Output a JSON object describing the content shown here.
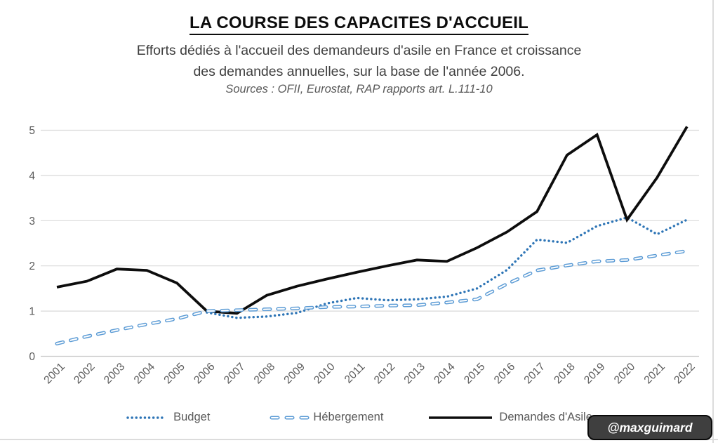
{
  "header": {
    "title": "LA COURSE DES CAPACITES D'ACCUEIL",
    "subtitle_line1": "Efforts dédiés à l'accueil des demandeurs d'asile en France et croissance",
    "subtitle_line2": "des demandes annuelles, sur la base de l'année 2006.",
    "sources": "Sources : OFII, Eurostat, RAP rapports art. L.111-10"
  },
  "chart_data": {
    "type": "line",
    "title": "LA COURSE DES CAPACITES D'ACCUEIL",
    "x": [
      "2001",
      "2002",
      "2003",
      "2004",
      "2005",
      "2006",
      "2007",
      "2008",
      "2009",
      "2010",
      "2011",
      "2012",
      "2013",
      "2014",
      "2015",
      "2016",
      "2017",
      "2018",
      "2019",
      "2020",
      "2021",
      "2022"
    ],
    "ylim": [
      0,
      5
    ],
    "yticks": [
      0,
      1,
      2,
      3,
      4,
      5
    ],
    "grid": true,
    "legend_position": "bottom",
    "axis_text_color": "#595959",
    "gridline_color": "#d9d9d9",
    "series": [
      {
        "name": "Budget",
        "style": "dotted",
        "color": "#2E75B6",
        "values": [
          null,
          null,
          null,
          null,
          null,
          0.97,
          0.85,
          0.88,
          0.96,
          1.17,
          1.29,
          1.24,
          1.26,
          1.32,
          1.5,
          1.91,
          2.58,
          2.51,
          2.88,
          3.07,
          2.7,
          3.02
        ]
      },
      {
        "name": "Hébergement",
        "style": "dashed",
        "hollow": true,
        "color": "#5B9BD5",
        "values": [
          0.28,
          0.44,
          0.58,
          0.71,
          0.83,
          1.0,
          1.02,
          1.04,
          1.06,
          1.09,
          1.1,
          1.12,
          1.13,
          1.19,
          1.26,
          1.6,
          1.9,
          2.01,
          2.1,
          2.13,
          2.23,
          2.33
        ]
      },
      {
        "name": "Demandes d'Asile",
        "style": "solid",
        "color": "#0d0d0d",
        "values": [
          1.53,
          1.66,
          1.93,
          1.9,
          1.62,
          1.0,
          0.95,
          1.35,
          1.55,
          1.71,
          1.86,
          2.0,
          2.13,
          2.1,
          2.4,
          2.75,
          3.2,
          4.45,
          4.9,
          3.02,
          3.95,
          5.08
        ]
      }
    ]
  },
  "watermark": {
    "text": "@maxguimard",
    "background": "#3f3f3f",
    "text_color": "#ffffff"
  }
}
